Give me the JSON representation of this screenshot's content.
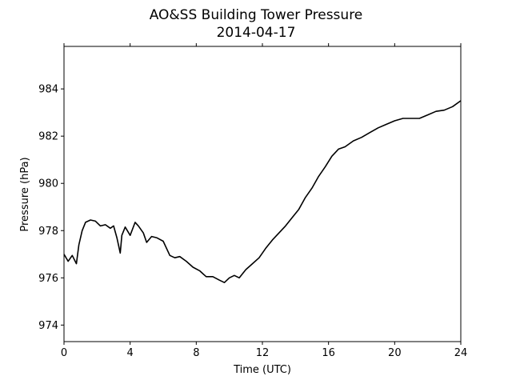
{
  "chart_data": {
    "type": "line",
    "title": "AO&SS Building Tower Pressure",
    "subtitle": "2014-04-17",
    "xlabel": "Time (UTC)",
    "ylabel": "Pressure (hPa)",
    "xlim": [
      0,
      24
    ],
    "ylim": [
      973.3,
      985.8
    ],
    "xticks": [
      0,
      4,
      8,
      12,
      16,
      20,
      24
    ],
    "xtick_labels": [
      "0",
      "4",
      "8",
      "12",
      "16",
      "20",
      "24"
    ],
    "yticks": [
      974,
      976,
      978,
      980,
      982,
      984
    ],
    "ytick_labels": [
      "974",
      "976",
      "978",
      "980",
      "982",
      "984"
    ],
    "grid": false,
    "series": [
      {
        "color": "#000000",
        "x": [
          0.0,
          0.25,
          0.5,
          0.75,
          0.9,
          1.1,
          1.3,
          1.6,
          1.9,
          2.2,
          2.5,
          2.8,
          3.0,
          3.2,
          3.4,
          3.5,
          3.7,
          4.0,
          4.3,
          4.5,
          4.8,
          5.0,
          5.3,
          5.6,
          6.0,
          6.4,
          6.7,
          7.0,
          7.4,
          7.8,
          8.2,
          8.6,
          9.0,
          9.4,
          9.7,
          10.0,
          10.3,
          10.6,
          11.0,
          11.4,
          11.8,
          12.2,
          12.6,
          13.0,
          13.4,
          13.8,
          14.2,
          14.6,
          15.0,
          15.4,
          15.8,
          16.2,
          16.6,
          17.0,
          17.5,
          18.0,
          18.5,
          19.0,
          19.5,
          20.0,
          20.5,
          21.0,
          21.5,
          22.0,
          22.5,
          23.0,
          23.5,
          24.0
        ],
        "y": [
          977.0,
          976.7,
          976.95,
          976.6,
          977.4,
          978.0,
          978.35,
          978.45,
          978.4,
          978.2,
          978.25,
          978.1,
          978.2,
          977.7,
          977.05,
          977.8,
          978.15,
          977.8,
          978.35,
          978.2,
          977.9,
          977.5,
          977.75,
          977.7,
          977.55,
          976.95,
          976.85,
          976.9,
          976.7,
          976.45,
          976.3,
          976.05,
          976.05,
          975.9,
          975.8,
          976.0,
          976.1,
          976.0,
          976.35,
          976.6,
          976.85,
          977.25,
          977.6,
          977.9,
          978.2,
          978.55,
          978.9,
          979.4,
          979.8,
          980.3,
          980.7,
          981.15,
          981.45,
          981.55,
          981.8,
          981.95,
          982.15,
          982.35,
          982.5,
          982.65,
          982.75,
          982.75,
          982.75,
          982.9,
          983.05,
          983.1,
          983.25,
          983.5
        ]
      }
    ]
  }
}
